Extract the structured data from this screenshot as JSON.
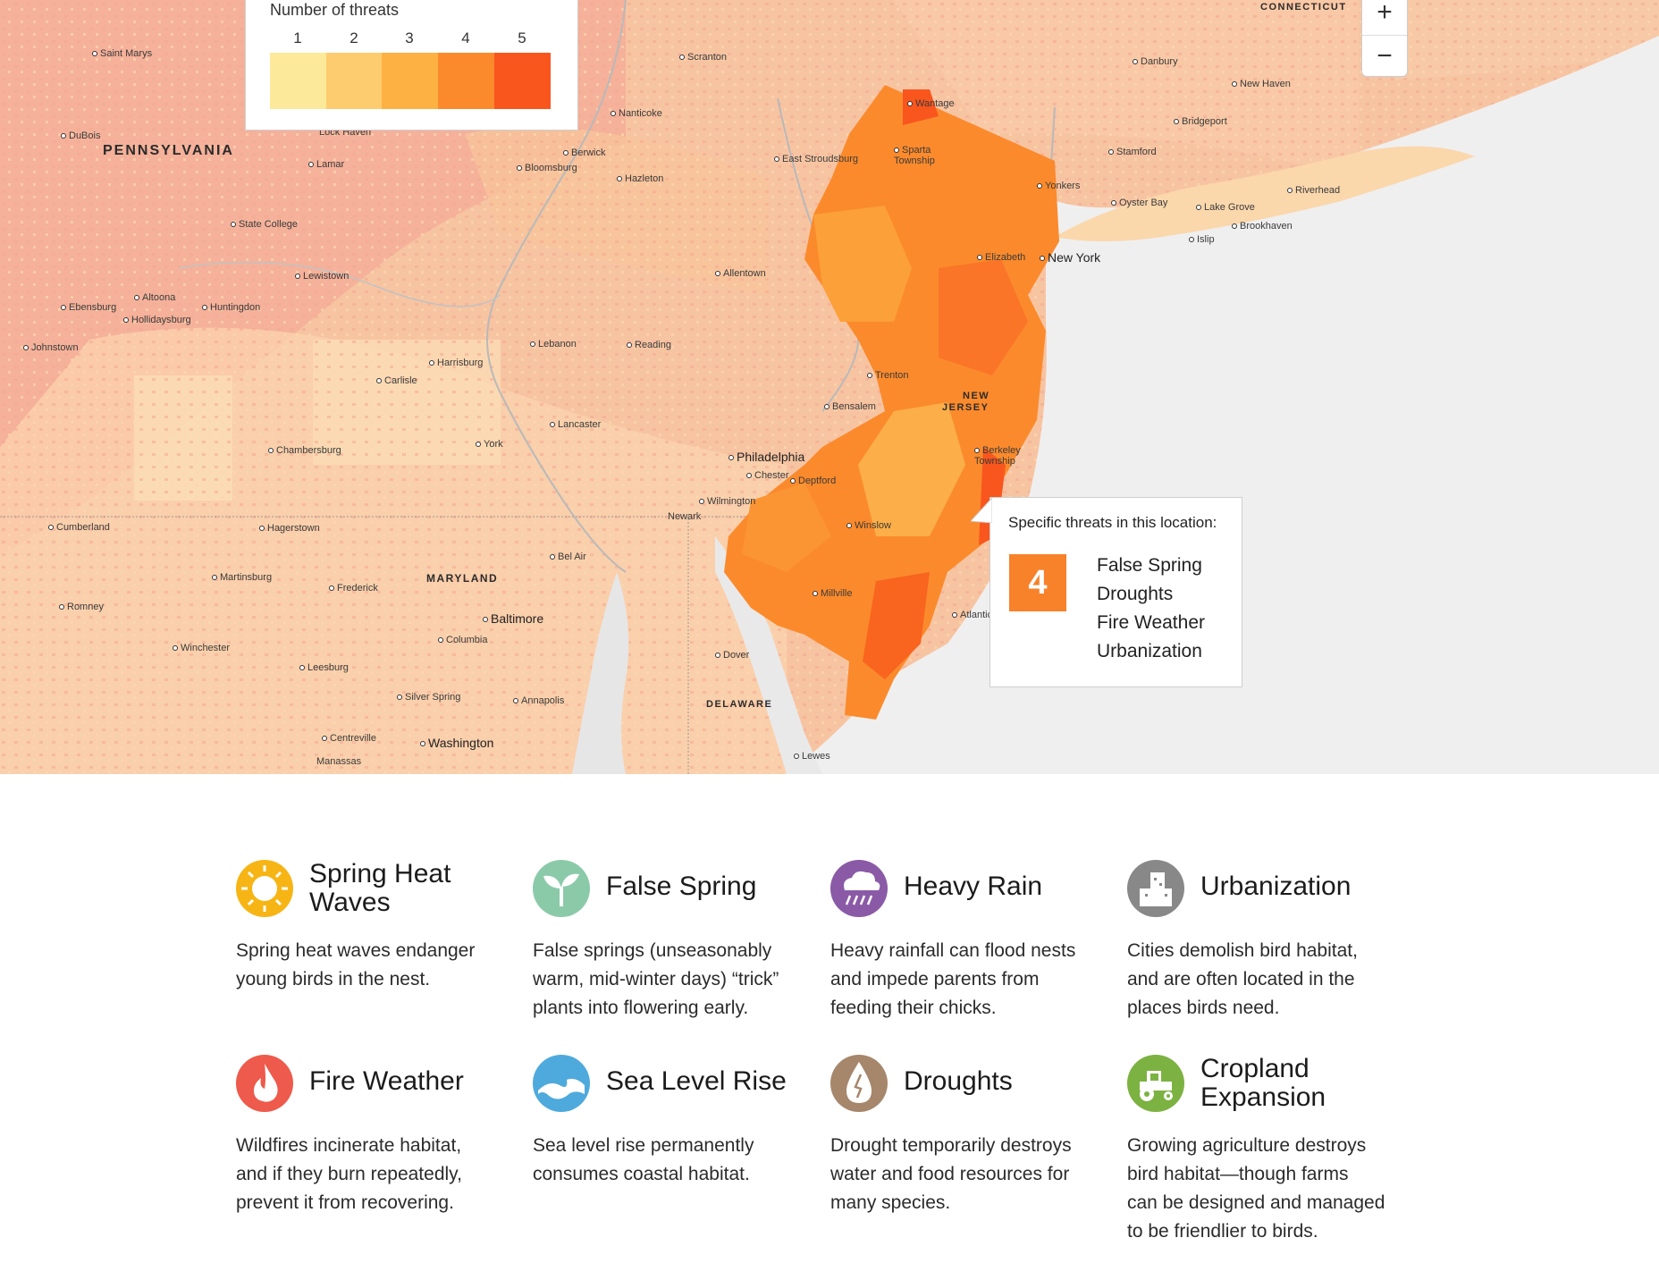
{
  "legend": {
    "title": "Number of threats",
    "levels": [
      {
        "label": "1",
        "color": "#fde99a"
      },
      {
        "label": "2",
        "color": "#fdcc6e"
      },
      {
        "label": "3",
        "color": "#fdb142"
      },
      {
        "label": "4",
        "color": "#fb8a2c"
      },
      {
        "label": "5",
        "color": "#f9561e"
      }
    ]
  },
  "zoom": {
    "in_label": "+",
    "out_label": "−"
  },
  "map": {
    "states": {
      "pennsylvania": "PENNSYLVANIA",
      "maryland": "MARYLAND",
      "new_jersey_line1": "NEW",
      "new_jersey_line2": "JERSEY",
      "delaware": "DELAWARE",
      "connecticut": "CONNECTICUT"
    },
    "places": {
      "saint_marys": "Saint Marys",
      "dubois": "DuBois",
      "lock_haven": "Lock Haven",
      "lamar": "Lamar",
      "state_college": "State College",
      "lewistown": "Lewistown",
      "altoona": "Altoona",
      "huntingdon": "Huntingdon",
      "ebensburg": "Ebensburg",
      "hollidaysburg": "Hollidaysburg",
      "johnstown": "Johnstown",
      "carlisle": "Carlisle",
      "harrisburg": "Harrisburg",
      "chambersburg": "Chambersburg",
      "york": "York",
      "lancaster": "Lancaster",
      "lebanon": "Lebanon",
      "reading": "Reading",
      "allentown": "Allentown",
      "scranton": "Scranton",
      "nanticoke": "Nanticoke",
      "berwick": "Berwick",
      "bloomsburg": "Bloomsburg",
      "hazleton": "Hazleton",
      "east_stroudsburg": "East Stroudsburg",
      "wantage": "Wantage",
      "sparta": "Sparta Township",
      "elizabeth": "Elizabeth",
      "new_york": "New York",
      "yonkers": "Yonkers",
      "trenton": "Trenton",
      "bensalem": "Bensalem",
      "philadelphia": "Philadelphia",
      "chester": "Chester",
      "deptford": "Deptford",
      "wilmington": "Wilmington",
      "newark": "Newark",
      "winslow": "Winslow",
      "millville": "Millville",
      "atlantic": "Atlantic",
      "berkeley": "Berkeley Township",
      "cumberland": "Cumberland",
      "hagerstown": "Hagerstown",
      "martinsburg": "Martinsburg",
      "frederick": "Frederick",
      "bel_air": "Bel Air",
      "baltimore": "Baltimore",
      "columbia": "Columbia",
      "romney": "Romney",
      "winchester": "Winchester",
      "leesburg": "Leesburg",
      "silver_spring": "Silver Spring",
      "annapolis": "Annapolis",
      "washington": "Washington",
      "centreville": "Centreville",
      "manassas": "Manassas",
      "dover": "Dover",
      "lewes": "Lewes",
      "danbury": "Danbury",
      "new_haven": "New Haven",
      "bridgeport": "Bridgeport",
      "stamford": "Stamford",
      "oyster_bay": "Oyster Bay",
      "lake_grove": "Lake Grove",
      "riverhead": "Riverhead",
      "brookhaven": "Brookhaven",
      "islip": "Islip"
    }
  },
  "popup": {
    "title": "Specific threats in this location:",
    "count": "4",
    "threats": [
      "False Spring",
      "Droughts",
      "Fire Weather",
      "Urbanization"
    ]
  },
  "threat_cards": [
    {
      "icon": "sun-icon",
      "color": "#f7b515",
      "title_line1": "Spring Heat",
      "title_line2": "Waves",
      "desc_lines": [
        "Spring heat waves endanger",
        "young birds in the nest."
      ]
    },
    {
      "icon": "sprout-icon",
      "color": "#8bcaa9",
      "title_line1": "False Spring",
      "title_line2": "",
      "desc_lines": [
        "False springs (unseasonably",
        "warm, mid-winter days) “trick”",
        "plants into flowering early."
      ]
    },
    {
      "icon": "rain-cloud-icon",
      "color": "#8a5aa6",
      "title_line1": "Heavy Rain",
      "title_line2": "",
      "desc_lines": [
        "Heavy rainfall can flood nests",
        "and impede parents from",
        "feeding their chicks."
      ]
    },
    {
      "icon": "buildings-icon",
      "color": "#888888",
      "title_line1": "Urbanization",
      "title_line2": "",
      "desc_lines": [
        "Cities demolish bird habitat,",
        "and are often located in the",
        "places birds need."
      ]
    },
    {
      "icon": "flame-icon",
      "color": "#ee5a4b",
      "title_line1": "Fire Weather",
      "title_line2": "",
      "desc_lines": [
        "Wildfires incinerate habitat,",
        "and if they burn repeatedly,",
        "prevent it from recovering."
      ]
    },
    {
      "icon": "wave-icon",
      "color": "#4ea9dd",
      "title_line1": "Sea Level Rise",
      "title_line2": "",
      "desc_lines": [
        "Sea level rise permanently",
        "consumes coastal habitat."
      ]
    },
    {
      "icon": "drop-icon",
      "color": "#a6876c",
      "title_line1": "Droughts",
      "title_line2": "",
      "desc_lines": [
        "Drought temporarily destroys",
        "water and food resources for",
        "many species."
      ]
    },
    {
      "icon": "tractor-icon",
      "color": "#7cb241",
      "title_line1": "Cropland",
      "title_line2": "Expansion",
      "desc_lines": [
        "Growing agriculture destroys",
        "bird habitat—though farms",
        "can be designed and managed",
        "to be friendlier to birds."
      ]
    }
  ]
}
